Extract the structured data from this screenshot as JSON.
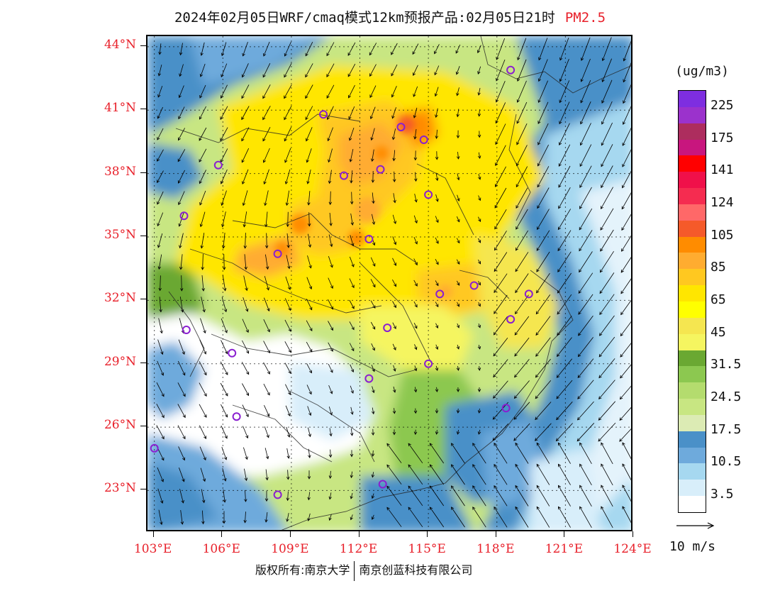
{
  "title": {
    "main": "2024年02月05日WRF/cmaq模式12km预报产品:02月05日21时",
    "pollutant": "PM2.5",
    "accent_color": "#e8202a"
  },
  "axes": {
    "lat_labels": [
      "44°N",
      "41°N",
      "38°N",
      "35°N",
      "32°N",
      "29°N",
      "26°N",
      "23°N"
    ],
    "lon_labels": [
      "103°E",
      "106°E",
      "109°E",
      "112°E",
      "115°E",
      "118°E",
      "121°E",
      "124°E"
    ],
    "lat_values": [
      44,
      41,
      38,
      35,
      32,
      29,
      26,
      23
    ],
    "lon_values": [
      103,
      106,
      109,
      112,
      115,
      118,
      121,
      124
    ],
    "lat_range": [
      21,
      44.5
    ],
    "lon_range": [
      102.7,
      124
    ]
  },
  "colorbar": {
    "unit": "(ug/m3)",
    "labels": [
      "225",
      "175",
      "141",
      "124",
      "105",
      "85",
      "65",
      "45",
      "31.5",
      "24.5",
      "17.5",
      "10.5",
      "3.5"
    ],
    "colors": [
      "#7e2ee0",
      "#9b32cc",
      "#ad2d5e",
      "#c8167e",
      "#ff0000",
      "#f0104a",
      "#f52c50",
      "#ff6868",
      "#f55a2a",
      "#ff8c00",
      "#ffac30",
      "#ffc820",
      "#ffe600",
      "#ffff00",
      "#f5e650",
      "#f5f560",
      "#6aa832",
      "#8cc850",
      "#b4dc6e",
      "#c8e682",
      "#dcebb4",
      "#4a90c8",
      "#6eaadc",
      "#a6d8f0",
      "#d8eefa",
      "#ffffff"
    ]
  },
  "wind_legend": {
    "label": "10 m/s"
  },
  "copyright": {
    "left": "版权所有:南京大学",
    "right": "南京创蓝科技有限公司"
  },
  "stations": [
    {
      "lon": 118.6,
      "lat": 42.9
    },
    {
      "lon": 110.4,
      "lat": 40.8
    },
    {
      "lon": 113.8,
      "lat": 40.2
    },
    {
      "lon": 114.8,
      "lat": 39.6
    },
    {
      "lon": 105.8,
      "lat": 38.4
    },
    {
      "lon": 111.3,
      "lat": 37.9
    },
    {
      "lon": 112.9,
      "lat": 38.2
    },
    {
      "lon": 115.0,
      "lat": 37.0
    },
    {
      "lon": 104.3,
      "lat": 36.0
    },
    {
      "lon": 112.4,
      "lat": 34.9
    },
    {
      "lon": 108.4,
      "lat": 34.2
    },
    {
      "lon": 117.0,
      "lat": 32.7
    },
    {
      "lon": 115.5,
      "lat": 32.3
    },
    {
      "lon": 119.4,
      "lat": 32.3
    },
    {
      "lon": 118.6,
      "lat": 31.1
    },
    {
      "lon": 113.2,
      "lat": 30.7
    },
    {
      "lon": 104.4,
      "lat": 30.6
    },
    {
      "lon": 106.4,
      "lat": 29.5
    },
    {
      "lon": 115.0,
      "lat": 29.0
    },
    {
      "lon": 112.4,
      "lat": 28.3
    },
    {
      "lon": 106.6,
      "lat": 26.5
    },
    {
      "lon": 118.4,
      "lat": 26.9
    },
    {
      "lon": 103.0,
      "lat": 25.0
    },
    {
      "lon": 108.4,
      "lat": 22.8
    },
    {
      "lon": 113.0,
      "lat": 23.3
    }
  ]
}
